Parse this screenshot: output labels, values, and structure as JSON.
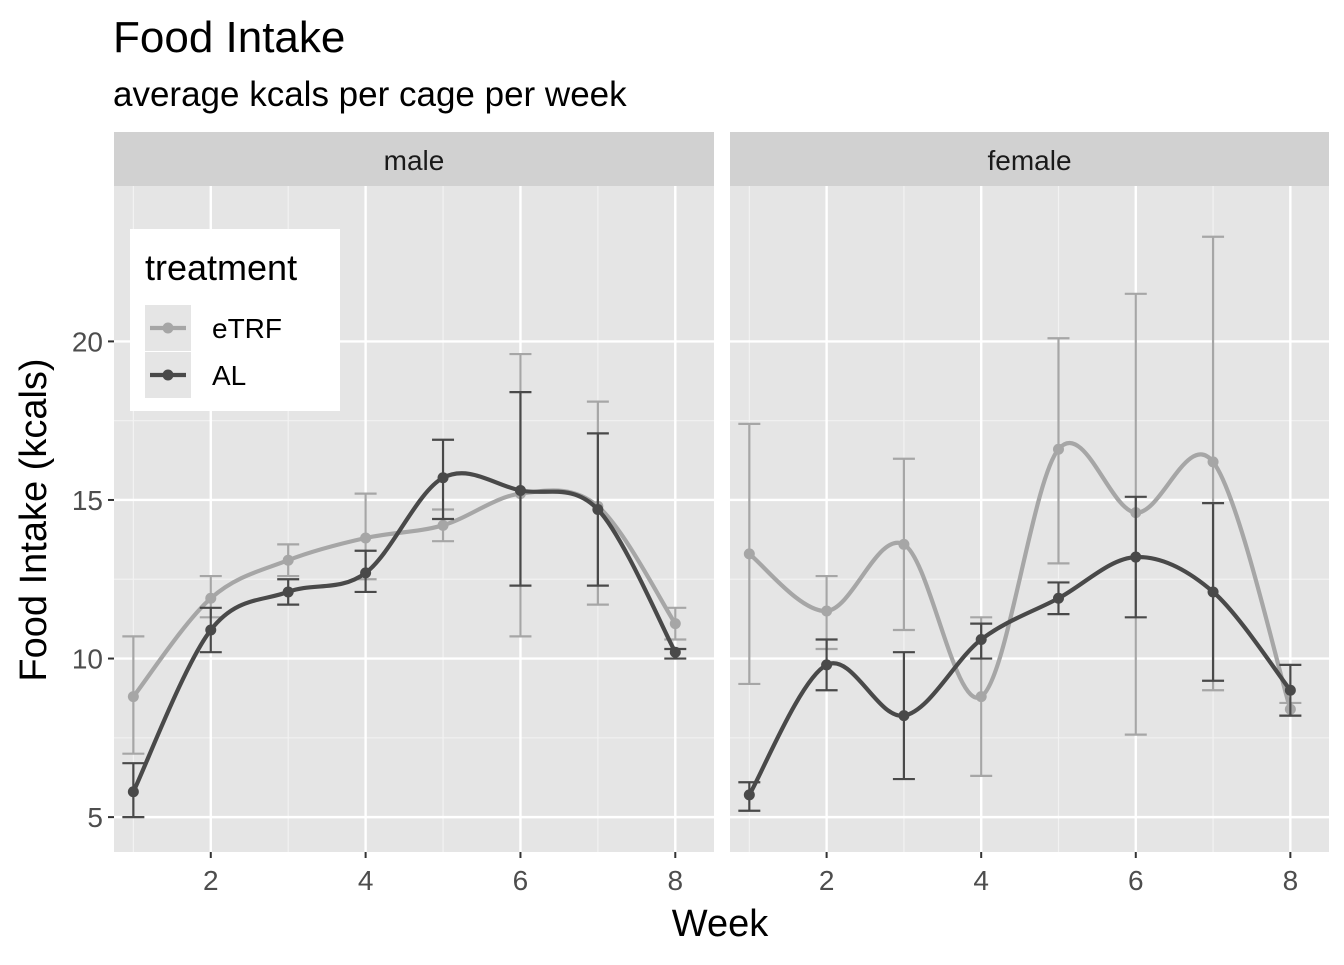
{
  "chart_data": {
    "type": "line",
    "title": "Food Intake",
    "subtitle": "average kcals per cage per week",
    "xlabel": "Week",
    "ylabel": "Food Intake (kcals)",
    "xlim": [
      0.75,
      8.5
    ],
    "ylim": [
      3.9,
      24.9
    ],
    "x_ticks": [
      2,
      4,
      6,
      8
    ],
    "y_ticks": [
      5,
      10,
      15,
      20
    ],
    "grid": true,
    "legend": {
      "title": "treatment",
      "position": "top-left",
      "entries": [
        "eTRF",
        "AL"
      ]
    },
    "colors": {
      "eTRF": "#a6a6a6",
      "AL": "#494949",
      "panel": "#e5e5e5",
      "strip": "#d1d1d1",
      "grid": "#ffffff"
    },
    "facets": [
      {
        "label": "male",
        "series": [
          {
            "name": "eTRF",
            "x": [
              1,
              2,
              3,
              4,
              5,
              6,
              7,
              8
            ],
            "y": [
              8.8,
              11.9,
              13.1,
              13.8,
              14.2,
              15.2,
              14.8,
              11.1
            ],
            "ymin": [
              7.0,
              11.3,
              12.6,
              12.5,
              13.7,
              10.7,
              11.7,
              10.6
            ],
            "ymax": [
              10.7,
              12.6,
              13.6,
              15.2,
              14.7,
              19.6,
              18.1,
              11.6
            ]
          },
          {
            "name": "AL",
            "x": [
              1,
              2,
              3,
              4,
              5,
              6,
              7,
              8
            ],
            "y": [
              5.8,
              10.9,
              12.1,
              12.7,
              15.7,
              15.3,
              14.7,
              10.2
            ],
            "ymin": [
              5.0,
              10.2,
              11.7,
              12.1,
              14.4,
              12.3,
              12.3,
              10.0
            ],
            "ymax": [
              6.7,
              11.6,
              12.5,
              13.4,
              16.9,
              18.4,
              17.1,
              10.3
            ]
          }
        ]
      },
      {
        "label": "female",
        "series": [
          {
            "name": "eTRF",
            "x": [
              1,
              2,
              3,
              4,
              5,
              6,
              7,
              8
            ],
            "y": [
              13.3,
              11.5,
              13.6,
              8.8,
              16.6,
              14.6,
              16.2,
              8.4
            ],
            "ymin": [
              9.2,
              10.3,
              10.9,
              6.3,
              13.0,
              7.6,
              9.0,
              8.2
            ],
            "ymax": [
              17.4,
              12.6,
              16.3,
              11.3,
              20.1,
              21.5,
              23.3,
              8.6
            ]
          },
          {
            "name": "AL",
            "x": [
              1,
              2,
              3,
              4,
              5,
              6,
              7,
              8
            ],
            "y": [
              5.7,
              9.8,
              8.2,
              10.6,
              11.9,
              13.2,
              12.1,
              9.0
            ],
            "ymin": [
              5.2,
              9.0,
              6.2,
              10.0,
              11.4,
              11.3,
              9.3,
              8.2
            ],
            "ymax": [
              6.1,
              10.6,
              10.2,
              11.1,
              12.4,
              15.1,
              14.9,
              9.8
            ]
          }
        ]
      }
    ]
  }
}
